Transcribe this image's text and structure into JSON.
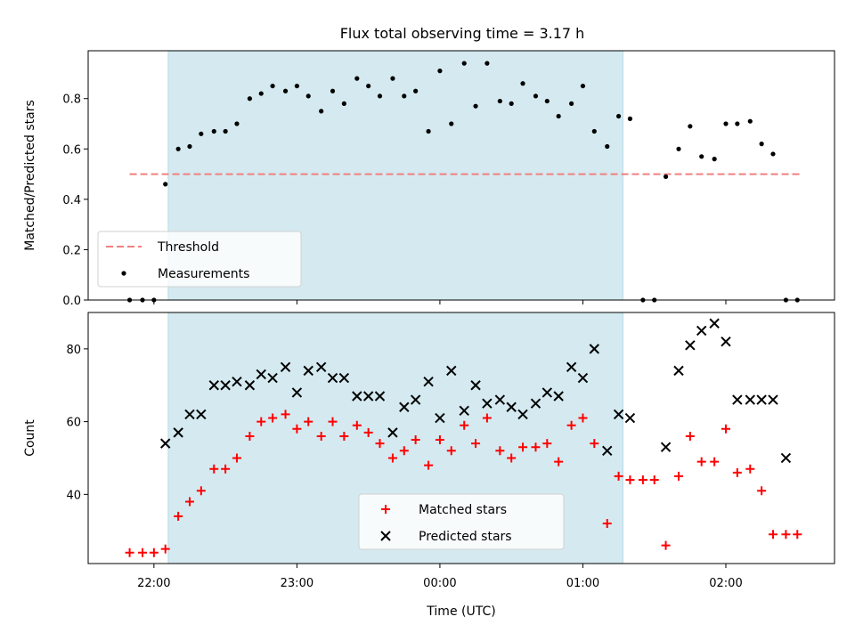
{
  "chart_data": {
    "title": "Flux total observing time = 3.17 h",
    "xlabel": "Time (UTC)",
    "x_tick_labels": [
      "22:00",
      "23:00",
      "00:00",
      "01:00",
      "02:00"
    ],
    "x_ticks_hours": [
      22,
      23,
      24,
      25,
      26
    ],
    "xlim_hours": [
      21.54,
      26.76
    ],
    "shaded_span_hours": [
      22.1,
      25.28
    ],
    "shade_color": "#d4eaf0",
    "panels": [
      {
        "type": "scatter",
        "ylabel": "Matched/Predicted stars",
        "ylim": [
          0,
          0.99
        ],
        "y_ticks": [
          0.0,
          0.2,
          0.4,
          0.6,
          0.8
        ],
        "y_tick_labels": [
          "0.0",
          "0.2",
          "0.4",
          "0.6",
          "0.8"
        ],
        "threshold": {
          "name": "Threshold",
          "value": 0.5,
          "x_range_hours": [
            21.83,
            26.52
          ],
          "color": "#f08080"
        },
        "series": [
          {
            "name": "Measurements",
            "color": "#000000",
            "marker": "dot",
            "x_hours": [
              21.83,
              21.92,
              22.0,
              22.08,
              22.17,
              22.25,
              22.33,
              22.42,
              22.5,
              22.58,
              22.67,
              22.75,
              22.83,
              22.92,
              23.0,
              23.08,
              23.17,
              23.25,
              23.33,
              23.42,
              23.5,
              23.58,
              23.67,
              23.75,
              23.83,
              23.92,
              24.0,
              24.08,
              24.17,
              24.25,
              24.33,
              24.42,
              24.5,
              24.58,
              24.67,
              24.75,
              24.83,
              24.92,
              25.0,
              25.08,
              25.17,
              25.25,
              25.33,
              25.42,
              25.5,
              25.58,
              25.67,
              25.75,
              25.83,
              25.92,
              26.0,
              26.08,
              26.17,
              26.25,
              26.33,
              26.42,
              26.5
            ],
            "values": [
              0.0,
              0.0,
              0.0,
              0.46,
              0.6,
              0.61,
              0.66,
              0.67,
              0.67,
              0.7,
              0.8,
              0.82,
              0.85,
              0.83,
              0.85,
              0.81,
              0.75,
              0.83,
              0.78,
              0.88,
              0.85,
              0.81,
              0.88,
              0.81,
              0.83,
              0.67,
              0.91,
              0.7,
              0.94,
              0.77,
              0.94,
              0.79,
              0.78,
              0.86,
              0.81,
              0.79,
              0.73,
              0.78,
              0.85,
              0.67,
              0.61,
              0.73,
              0.72,
              0.0,
              0.0,
              0.49,
              0.6,
              0.69,
              0.57,
              0.56,
              0.7,
              0.7,
              0.71,
              0.62,
              0.58,
              0.0,
              0.0
            ]
          }
        ],
        "legend": {
          "entries": [
            "Threshold",
            "Measurements"
          ],
          "position": "lower-left"
        }
      },
      {
        "type": "scatter",
        "ylabel": "Count",
        "ylim": [
          21,
          90
        ],
        "y_ticks": [
          40,
          60,
          80
        ],
        "y_tick_labels": [
          "40",
          "60",
          "80"
        ],
        "series": [
          {
            "name": "Matched stars",
            "color": "#ff0000",
            "marker": "plus",
            "x_hours": [
              21.83,
              21.92,
              22.0,
              22.08,
              22.17,
              22.25,
              22.33,
              22.42,
              22.5,
              22.58,
              22.67,
              22.75,
              22.83,
              22.92,
              23.0,
              23.08,
              23.17,
              23.25,
              23.33,
              23.42,
              23.5,
              23.58,
              23.67,
              23.75,
              23.83,
              23.92,
              24.0,
              24.08,
              24.17,
              24.25,
              24.33,
              24.42,
              24.5,
              24.58,
              24.67,
              24.75,
              24.83,
              24.92,
              25.0,
              25.08,
              25.17,
              25.25,
              25.33,
              25.42,
              25.5,
              25.58,
              25.67,
              25.75,
              25.83,
              25.92,
              26.0,
              26.08,
              26.17,
              26.25,
              26.33,
              26.42,
              26.5
            ],
            "values": [
              24,
              24,
              24,
              25,
              34,
              38,
              41,
              47,
              47,
              50,
              56,
              60,
              61,
              62,
              58,
              60,
              56,
              60,
              56,
              59,
              57,
              54,
              50,
              52,
              55,
              48,
              55,
              52,
              59,
              54,
              61,
              52,
              50,
              53,
              53,
              54,
              49,
              59,
              61,
              54,
              32,
              45,
              44,
              44,
              44,
              26,
              45,
              56,
              49,
              49,
              58,
              46,
              47,
              41,
              29,
              29,
              29
            ]
          },
          {
            "name": "Predicted stars",
            "color": "#000000",
            "marker": "x",
            "x_hours": [
              22.08,
              22.17,
              22.25,
              22.33,
              22.42,
              22.5,
              22.58,
              22.67,
              22.75,
              22.83,
              22.92,
              23.0,
              23.08,
              23.17,
              23.25,
              23.33,
              23.42,
              23.5,
              23.58,
              23.67,
              23.75,
              23.83,
              23.92,
              24.0,
              24.08,
              24.17,
              24.25,
              24.33,
              24.42,
              24.5,
              24.58,
              24.67,
              24.75,
              24.83,
              24.92,
              25.0,
              25.08,
              25.17,
              25.25,
              25.33,
              25.58,
              25.67,
              25.75,
              25.83,
              25.92,
              26.0,
              26.08,
              26.17,
              26.25,
              26.33,
              26.42
            ],
            "values": [
              54,
              57,
              62,
              62,
              70,
              70,
              71,
              70,
              73,
              72,
              75,
              68,
              74,
              75,
              72,
              72,
              67,
              67,
              67,
              57,
              64,
              66,
              71,
              61,
              74,
              63,
              70,
              65,
              66,
              64,
              62,
              65,
              68,
              67,
              75,
              72,
              80,
              52,
              62,
              61,
              53,
              74,
              81,
              85,
              87,
              82,
              66,
              66,
              66,
              66,
              50
            ]
          }
        ],
        "legend": {
          "entries": [
            "Matched stars",
            "Predicted stars"
          ],
          "position": "lower-center"
        }
      }
    ]
  }
}
